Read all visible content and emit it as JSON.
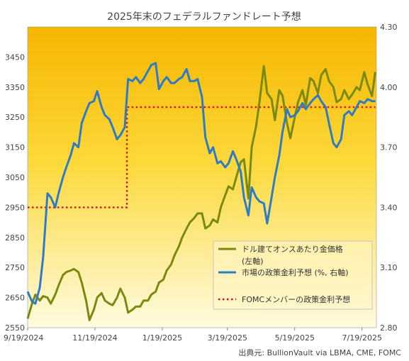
{
  "chart_data": {
    "type": "line",
    "title": "2025年末のフェデラルファンドレート予想",
    "source": "出典元: BullionVault via LBMA, CME, FOMC",
    "x_ticks": [
      "9/19/2024",
      "11/19/2024",
      "1/19/2025",
      "3/19/2025",
      "5/19/2025",
      "7/19/2025"
    ],
    "x_range": [
      "2024-09-19",
      "2025-08-01"
    ],
    "y_left": {
      "min": 2550,
      "max": 3550,
      "ticks": [
        2550,
        2650,
        2750,
        2850,
        2950,
        3050,
        3150,
        3250,
        3350,
        3450
      ]
    },
    "y_right": {
      "min": 2.8,
      "max": 4.3,
      "ticks": [
        "2.80",
        "3.10",
        "3.40",
        "3.70",
        "4.00",
        "4.30"
      ]
    },
    "legend": {
      "placement": "bottom-right",
      "entries": [
        {
          "line1": "ドル建てオンスあたり金価格",
          "line2": "(左軸)"
        },
        {
          "line1": "市場の政策金利予想 (%, 右軸)",
          "line2": ""
        },
        {
          "line1": "FOMCメンバーの政策金利予想",
          "line2": ""
        }
      ]
    },
    "colors": {
      "gold": "#7a8a10",
      "market": "#2f7bc4",
      "fomc": "#dd1111",
      "bg_top": "#f6b500",
      "bg_bottom": "#fffbe0"
    },
    "series": [
      {
        "key": "gold",
        "axis": "left",
        "points": [
          [
            "2024-09-19",
            2580
          ],
          [
            "2024-09-23",
            2630
          ],
          [
            "2024-09-26",
            2660
          ],
          [
            "2024-09-30",
            2640
          ],
          [
            "2024-10-03",
            2655
          ],
          [
            "2024-10-07",
            2650
          ],
          [
            "2024-10-10",
            2630
          ],
          [
            "2024-10-14",
            2660
          ],
          [
            "2024-10-17",
            2690
          ],
          [
            "2024-10-21",
            2725
          ],
          [
            "2024-10-24",
            2735
          ],
          [
            "2024-10-28",
            2740
          ],
          [
            "2024-10-31",
            2745
          ],
          [
            "2024-11-04",
            2735
          ],
          [
            "2024-11-07",
            2700
          ],
          [
            "2024-11-11",
            2640
          ],
          [
            "2024-11-14",
            2575
          ],
          [
            "2024-11-18",
            2610
          ],
          [
            "2024-11-21",
            2650
          ],
          [
            "2024-11-25",
            2665
          ],
          [
            "2024-11-28",
            2640
          ],
          [
            "2024-12-02",
            2630
          ],
          [
            "2024-12-05",
            2625
          ],
          [
            "2024-12-09",
            2650
          ],
          [
            "2024-12-12",
            2680
          ],
          [
            "2024-12-16",
            2650
          ],
          [
            "2024-12-19",
            2600
          ],
          [
            "2024-12-23",
            2610
          ],
          [
            "2024-12-26",
            2620
          ],
          [
            "2024-12-30",
            2620
          ],
          [
            "2025-01-02",
            2640
          ],
          [
            "2025-01-06",
            2640
          ],
          [
            "2025-01-09",
            2660
          ],
          [
            "2025-01-13",
            2670
          ],
          [
            "2025-01-16",
            2700
          ],
          [
            "2025-01-20",
            2710
          ],
          [
            "2025-01-23",
            2740
          ],
          [
            "2025-01-27",
            2760
          ],
          [
            "2025-01-30",
            2790
          ],
          [
            "2025-02-03",
            2820
          ],
          [
            "2025-02-06",
            2850
          ],
          [
            "2025-02-10",
            2880
          ],
          [
            "2025-02-13",
            2900
          ],
          [
            "2025-02-17",
            2915
          ],
          [
            "2025-02-20",
            2930
          ],
          [
            "2025-02-24",
            2930
          ],
          [
            "2025-02-27",
            2880
          ],
          [
            "2025-03-03",
            2890
          ],
          [
            "2025-03-06",
            2910
          ],
          [
            "2025-03-10",
            2900
          ],
          [
            "2025-03-13",
            2950
          ],
          [
            "2025-03-17",
            2990
          ],
          [
            "2025-03-20",
            3020
          ],
          [
            "2025-03-24",
            3010
          ],
          [
            "2025-03-27",
            3050
          ],
          [
            "2025-03-31",
            3100
          ],
          [
            "2025-04-03",
            3110
          ],
          [
            "2025-04-07",
            2980
          ],
          [
            "2025-04-10",
            3150
          ],
          [
            "2025-04-14",
            3220
          ],
          [
            "2025-04-17",
            3300
          ],
          [
            "2025-04-21",
            3420
          ],
          [
            "2025-04-24",
            3330
          ],
          [
            "2025-04-28",
            3310
          ],
          [
            "2025-05-01",
            3240
          ],
          [
            "2025-05-05",
            3340
          ],
          [
            "2025-05-08",
            3320
          ],
          [
            "2025-05-12",
            3230
          ],
          [
            "2025-05-15",
            3180
          ],
          [
            "2025-05-19",
            3250
          ],
          [
            "2025-05-22",
            3300
          ],
          [
            "2025-05-26",
            3340
          ],
          [
            "2025-05-29",
            3290
          ],
          [
            "2025-06-02",
            3380
          ],
          [
            "2025-06-05",
            3370
          ],
          [
            "2025-06-09",
            3330
          ],
          [
            "2025-06-12",
            3390
          ],
          [
            "2025-06-16",
            3410
          ],
          [
            "2025-06-19",
            3370
          ],
          [
            "2025-06-23",
            3350
          ],
          [
            "2025-06-26",
            3300
          ],
          [
            "2025-06-30",
            3310
          ],
          [
            "2025-07-03",
            3340
          ],
          [
            "2025-07-07",
            3310
          ],
          [
            "2025-07-10",
            3325
          ],
          [
            "2025-07-14",
            3350
          ],
          [
            "2025-07-17",
            3340
          ],
          [
            "2025-07-21",
            3400
          ],
          [
            "2025-07-24",
            3360
          ],
          [
            "2025-07-28",
            3320
          ],
          [
            "2025-07-31",
            3400
          ]
        ]
      },
      {
        "key": "market",
        "axis": "right",
        "points": [
          [
            "2024-09-19",
            2.98
          ],
          [
            "2024-09-23",
            2.93
          ],
          [
            "2024-09-26",
            2.92
          ],
          [
            "2024-09-30",
            3.0
          ],
          [
            "2024-10-03",
            3.15
          ],
          [
            "2024-10-07",
            3.47
          ],
          [
            "2024-10-10",
            3.45
          ],
          [
            "2024-10-14",
            3.4
          ],
          [
            "2024-10-17",
            3.47
          ],
          [
            "2024-10-21",
            3.55
          ],
          [
            "2024-10-24",
            3.6
          ],
          [
            "2024-10-28",
            3.66
          ],
          [
            "2024-10-31",
            3.72
          ],
          [
            "2024-11-04",
            3.7
          ],
          [
            "2024-11-07",
            3.82
          ],
          [
            "2024-11-11",
            3.88
          ],
          [
            "2024-11-14",
            3.92
          ],
          [
            "2024-11-18",
            3.93
          ],
          [
            "2024-11-21",
            3.98
          ],
          [
            "2024-11-25",
            3.9
          ],
          [
            "2024-11-28",
            3.86
          ],
          [
            "2024-12-02",
            3.84
          ],
          [
            "2024-12-05",
            3.8
          ],
          [
            "2024-12-09",
            3.74
          ],
          [
            "2024-12-12",
            3.76
          ],
          [
            "2024-12-16",
            3.8
          ],
          [
            "2024-12-19",
            4.04
          ],
          [
            "2024-12-23",
            4.03
          ],
          [
            "2024-12-26",
            4.05
          ],
          [
            "2024-12-30",
            4.02
          ],
          [
            "2025-01-02",
            4.04
          ],
          [
            "2025-01-06",
            4.08
          ],
          [
            "2025-01-09",
            4.11
          ],
          [
            "2025-01-13",
            4.12
          ],
          [
            "2025-01-16",
            3.99
          ],
          [
            "2025-01-20",
            4.03
          ],
          [
            "2025-01-23",
            4.05
          ],
          [
            "2025-01-27",
            4.02
          ],
          [
            "2025-01-30",
            4.02
          ],
          [
            "2025-02-03",
            4.04
          ],
          [
            "2025-02-06",
            4.05
          ],
          [
            "2025-02-10",
            4.09
          ],
          [
            "2025-02-13",
            4.03
          ],
          [
            "2025-02-17",
            4.03
          ],
          [
            "2025-02-20",
            4.04
          ],
          [
            "2025-02-24",
            3.95
          ],
          [
            "2025-02-27",
            3.75
          ],
          [
            "2025-03-03",
            3.67
          ],
          [
            "2025-03-06",
            3.7
          ],
          [
            "2025-03-10",
            3.62
          ],
          [
            "2025-03-13",
            3.63
          ],
          [
            "2025-03-17",
            3.6
          ],
          [
            "2025-03-20",
            3.62
          ],
          [
            "2025-03-24",
            3.68
          ],
          [
            "2025-03-27",
            3.64
          ],
          [
            "2025-03-31",
            3.58
          ],
          [
            "2025-04-03",
            3.45
          ],
          [
            "2025-04-07",
            3.36
          ],
          [
            "2025-04-10",
            3.5
          ],
          [
            "2025-04-14",
            3.45
          ],
          [
            "2025-04-17",
            3.43
          ],
          [
            "2025-04-21",
            3.42
          ],
          [
            "2025-04-24",
            3.32
          ],
          [
            "2025-04-28",
            3.45
          ],
          [
            "2025-05-01",
            3.55
          ],
          [
            "2025-05-05",
            3.66
          ],
          [
            "2025-05-08",
            3.78
          ],
          [
            "2025-05-12",
            3.89
          ],
          [
            "2025-05-15",
            3.85
          ],
          [
            "2025-05-19",
            3.86
          ],
          [
            "2025-05-22",
            3.88
          ],
          [
            "2025-05-26",
            3.92
          ],
          [
            "2025-05-29",
            3.89
          ],
          [
            "2025-06-02",
            3.92
          ],
          [
            "2025-06-05",
            3.94
          ],
          [
            "2025-06-09",
            3.96
          ],
          [
            "2025-06-12",
            3.93
          ],
          [
            "2025-06-16",
            3.9
          ],
          [
            "2025-06-19",
            3.82
          ],
          [
            "2025-06-23",
            3.72
          ],
          [
            "2025-06-26",
            3.7
          ],
          [
            "2025-06-30",
            3.74
          ],
          [
            "2025-07-03",
            3.86
          ],
          [
            "2025-07-07",
            3.88
          ],
          [
            "2025-07-10",
            3.86
          ],
          [
            "2025-07-14",
            3.9
          ],
          [
            "2025-07-17",
            3.93
          ],
          [
            "2025-07-21",
            3.92
          ],
          [
            "2025-07-24",
            3.94
          ],
          [
            "2025-07-28",
            3.93
          ],
          [
            "2025-07-31",
            3.93
          ]
        ]
      },
      {
        "key": "fomc",
        "axis": "right",
        "step": true,
        "points": [
          [
            "2024-09-19",
            3.4
          ],
          [
            "2024-12-18",
            3.4
          ],
          [
            "2024-12-18",
            3.9
          ],
          [
            "2025-07-31",
            3.9
          ]
        ]
      }
    ]
  }
}
